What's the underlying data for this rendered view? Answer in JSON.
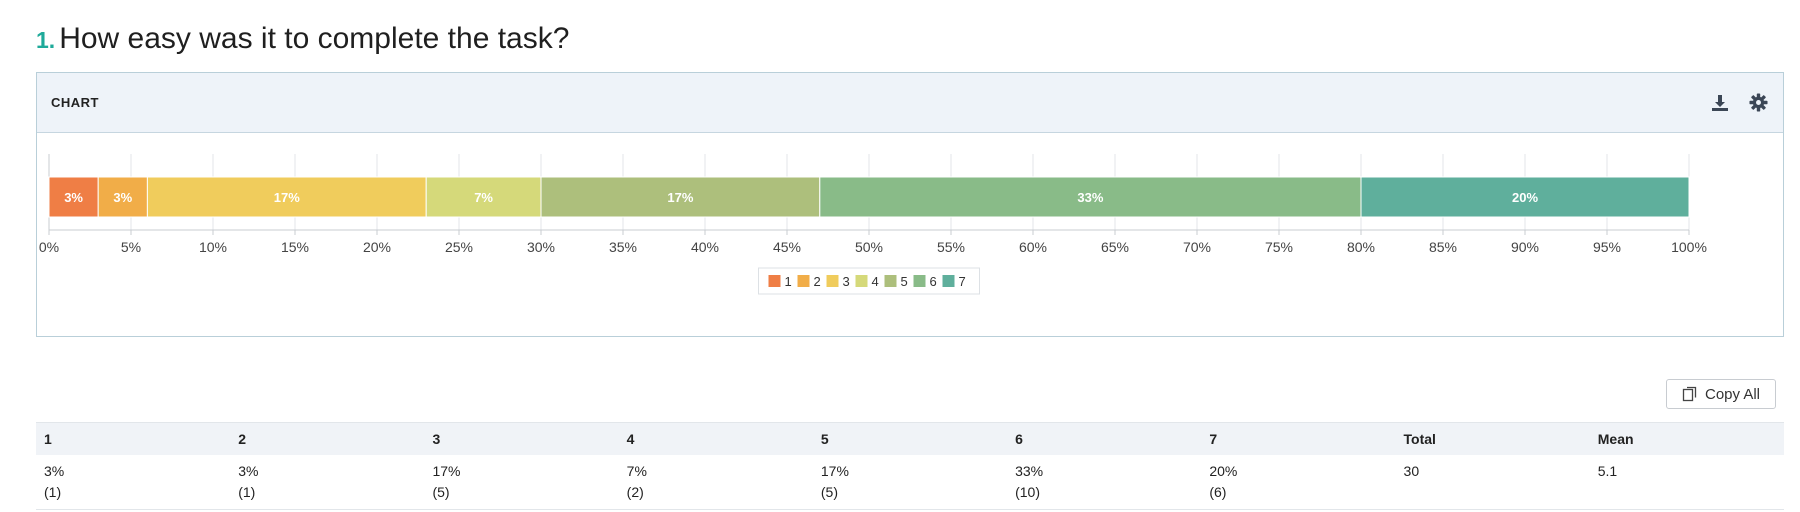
{
  "question": {
    "number": "1.",
    "text": "How easy was it to complete the task?"
  },
  "panel": {
    "title": "CHART",
    "download_icon": "download-icon",
    "settings_icon": "gear-icon"
  },
  "chart_data": {
    "type": "bar",
    "orientation": "horizontal-stacked",
    "xlim": [
      0,
      100
    ],
    "xticks": [
      "0%",
      "5%",
      "10%",
      "15%",
      "20%",
      "25%",
      "30%",
      "35%",
      "40%",
      "45%",
      "50%",
      "55%",
      "60%",
      "65%",
      "70%",
      "75%",
      "80%",
      "85%",
      "90%",
      "95%",
      "100%"
    ],
    "legend_position": "bottom-center",
    "grid": true,
    "series": [
      {
        "name": "1",
        "value": 3,
        "label": "3%",
        "color": "#ef7e45"
      },
      {
        "name": "2",
        "value": 3,
        "label": "3%",
        "color": "#f1ad48"
      },
      {
        "name": "3",
        "value": 17,
        "label": "17%",
        "color": "#f0cc5c"
      },
      {
        "name": "4",
        "value": 7,
        "label": "7%",
        "color": "#d5d97a"
      },
      {
        "name": "5",
        "value": 17,
        "label": "17%",
        "color": "#adbf7c"
      },
      {
        "name": "6",
        "value": 33,
        "label": "33%",
        "color": "#89bb88"
      },
      {
        "name": "7",
        "value": 20,
        "label": "20%",
        "color": "#5faf9c"
      }
    ]
  },
  "copy_button": {
    "label": "Copy All",
    "icon": "copy-icon"
  },
  "table": {
    "headers": [
      "1",
      "2",
      "3",
      "4",
      "5",
      "6",
      "7",
      "Total",
      "Mean"
    ],
    "percents": [
      "3%",
      "3%",
      "17%",
      "7%",
      "17%",
      "33%",
      "20%",
      "30",
      "5.1"
    ],
    "counts": [
      "(1)",
      "(1)",
      "(5)",
      "(2)",
      "(5)",
      "(10)",
      "(6)",
      "",
      ""
    ]
  }
}
